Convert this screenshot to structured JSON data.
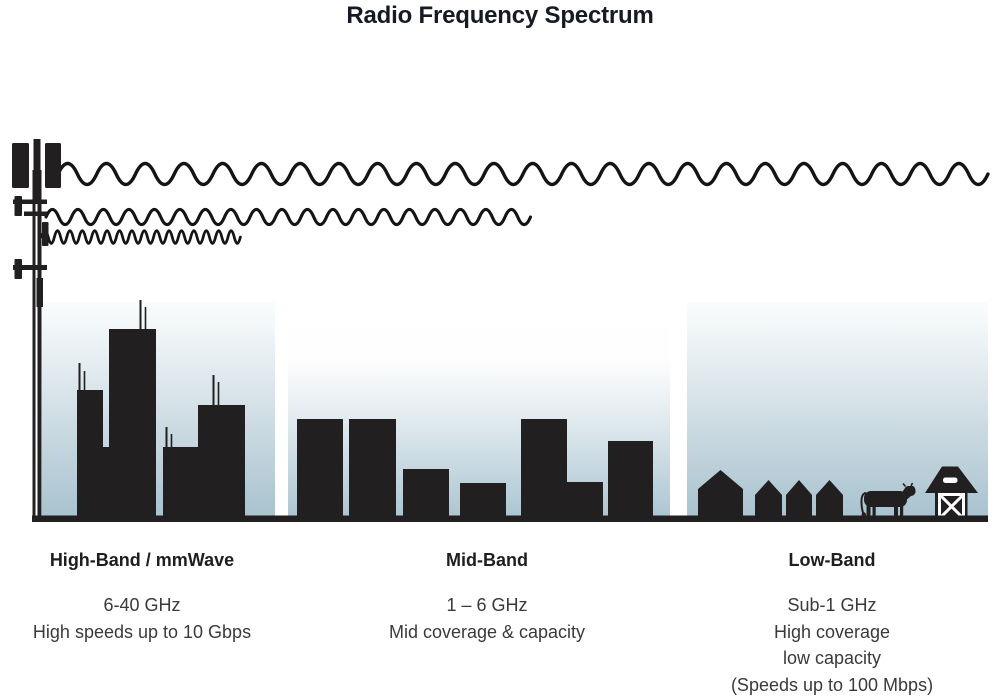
{
  "title": "Radio Frequency Spectrum",
  "bands": [
    {
      "id": "high-band",
      "name": "High-Band / mmWave",
      "lines": [
        "6-40 GHz",
        "High speeds up to 10 Gbps"
      ]
    },
    {
      "id": "mid-band",
      "name": "Mid-Band",
      "lines": [
        "1 – 6 GHz",
        "Mid coverage & capacity"
      ]
    },
    {
      "id": "low-band",
      "name": "Low-Band",
      "lines": [
        "Sub-1 GHz",
        "High coverage",
        "low capacity",
        "(Speeds up to 100 Mbps)"
      ]
    }
  ],
  "icons": {
    "cell_tower": "cell-tower-icon",
    "long_wave": "radio-wave-long-icon",
    "medium_wave": "radio-wave-medium-icon",
    "short_wave": "radio-wave-short-icon",
    "city": "city-skyline-icon",
    "midrise": "midrise-buildings-icon",
    "houses": "suburban-houses-icon",
    "cow": "cow-icon",
    "barn": "barn-icon"
  },
  "colors": {
    "silhouette": "#221f20",
    "sky_top": "#ffffff",
    "sky_bottom": "#a7c2cf",
    "heading_text": "#1f1d1e",
    "body_text": "#3a3a3c",
    "title_text": "#151a24"
  }
}
